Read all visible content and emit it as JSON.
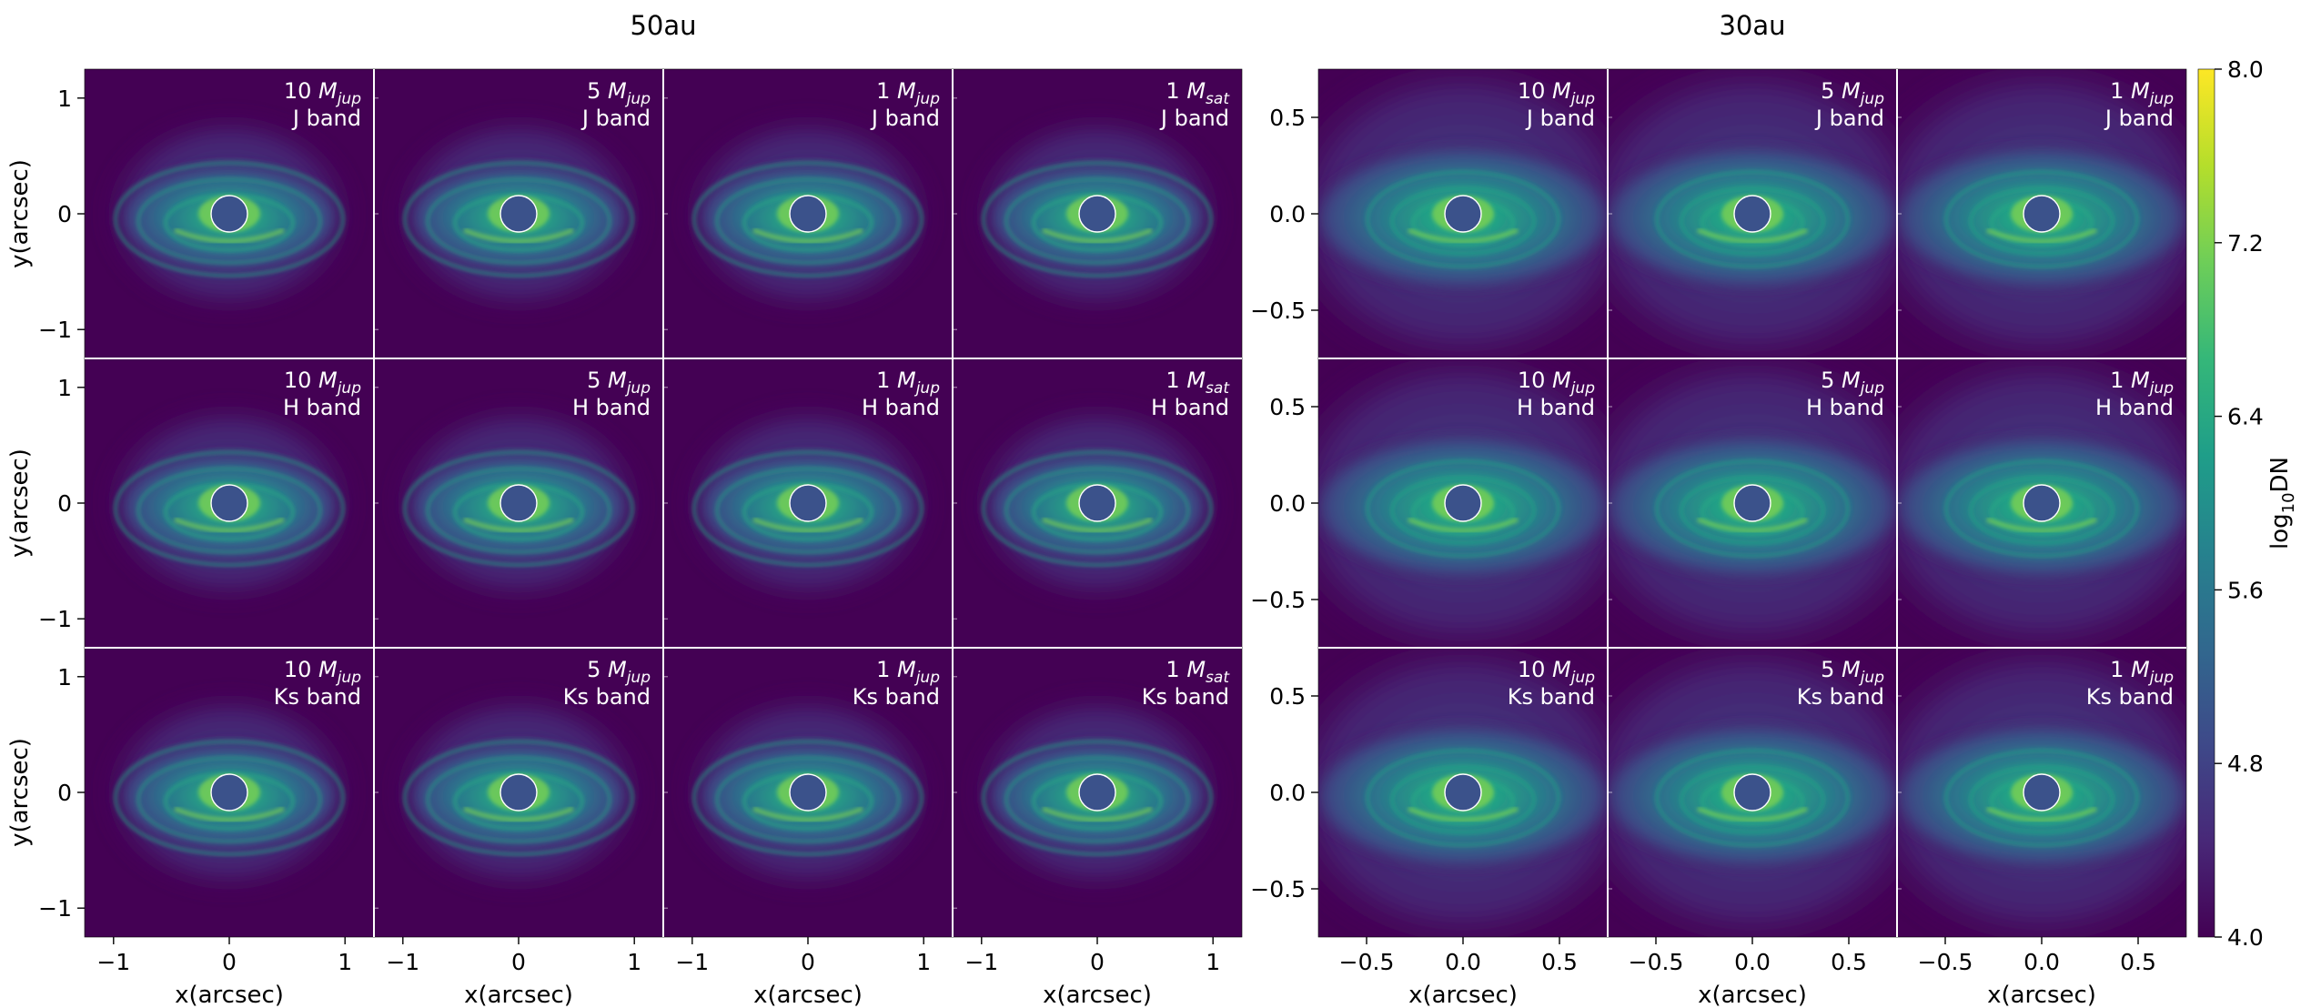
{
  "chart_data": {
    "type": "heatmap",
    "description_note": "Simulated disk images (log10 DN) around a masked central star; two groups of panels.",
    "colorbar": {
      "label_main": "log",
      "label_sub": "10",
      "label_tail": "DN",
      "range": [
        4.0,
        8.0
      ],
      "ticks": [
        "8.0",
        "7.2",
        "6.4",
        "5.6",
        "4.8",
        "4.0"
      ],
      "tick_values": [
        8.0,
        7.2,
        6.4,
        5.6,
        4.8,
        4.0
      ],
      "colormap": "viridis",
      "colormap_stops": [
        "#440154",
        "#482878",
        "#3e4989",
        "#31688e",
        "#26828e",
        "#1f9e89",
        "#35b779",
        "#6ece58",
        "#b5de2b",
        "#fde725"
      ]
    },
    "groups": [
      {
        "title": "50au",
        "rows": [
          "J band",
          "H band",
          "Ks band"
        ],
        "cols": [
          {
            "num": "10",
            "sub": "jup"
          },
          {
            "num": "5",
            "sub": "jup"
          },
          {
            "num": "1",
            "sub": "jup"
          },
          {
            "num": "1",
            "sub": "sat"
          }
        ],
        "xlim": [
          -1.25,
          1.25
        ],
        "ylim": [
          -1.25,
          1.25
        ],
        "xticks": [
          -1,
          0,
          1
        ],
        "xtick_labels": [
          "−1",
          "0",
          "1"
        ],
        "yticks": [
          1,
          0,
          -1
        ],
        "ytick_labels": [
          "1",
          "0",
          "−1"
        ],
        "xlabel": "x(arcsec)",
        "ylabel": "y(arcsec)"
      },
      {
        "title": "30au",
        "rows": [
          "J band",
          "H band",
          "Ks band"
        ],
        "cols": [
          {
            "num": "10",
            "sub": "jup"
          },
          {
            "num": "5",
            "sub": "jup"
          },
          {
            "num": "1",
            "sub": "jup"
          }
        ],
        "xlim": [
          -0.75,
          0.75
        ],
        "ylim": [
          -0.75,
          0.75
        ],
        "xticks": [
          -0.5,
          0.0,
          0.5
        ],
        "xtick_labels": [
          "−0.5",
          "0.0",
          "0.5"
        ],
        "yticks": [
          0.5,
          0.0,
          -0.5
        ],
        "ytick_labels": [
          "0.5",
          "0.0",
          "−0.5"
        ],
        "xlabel": "x(arcsec)",
        "ylabel": ""
      }
    ]
  },
  "colors": {
    "background_dark": "#440154",
    "disk_mid": "#2a788e",
    "disk_bright": "#22a884",
    "ring_bright": "#7ad151",
    "mask_fill": "#3b528b",
    "mask_edge": "#ffffff",
    "annotation": "#ffffff"
  }
}
